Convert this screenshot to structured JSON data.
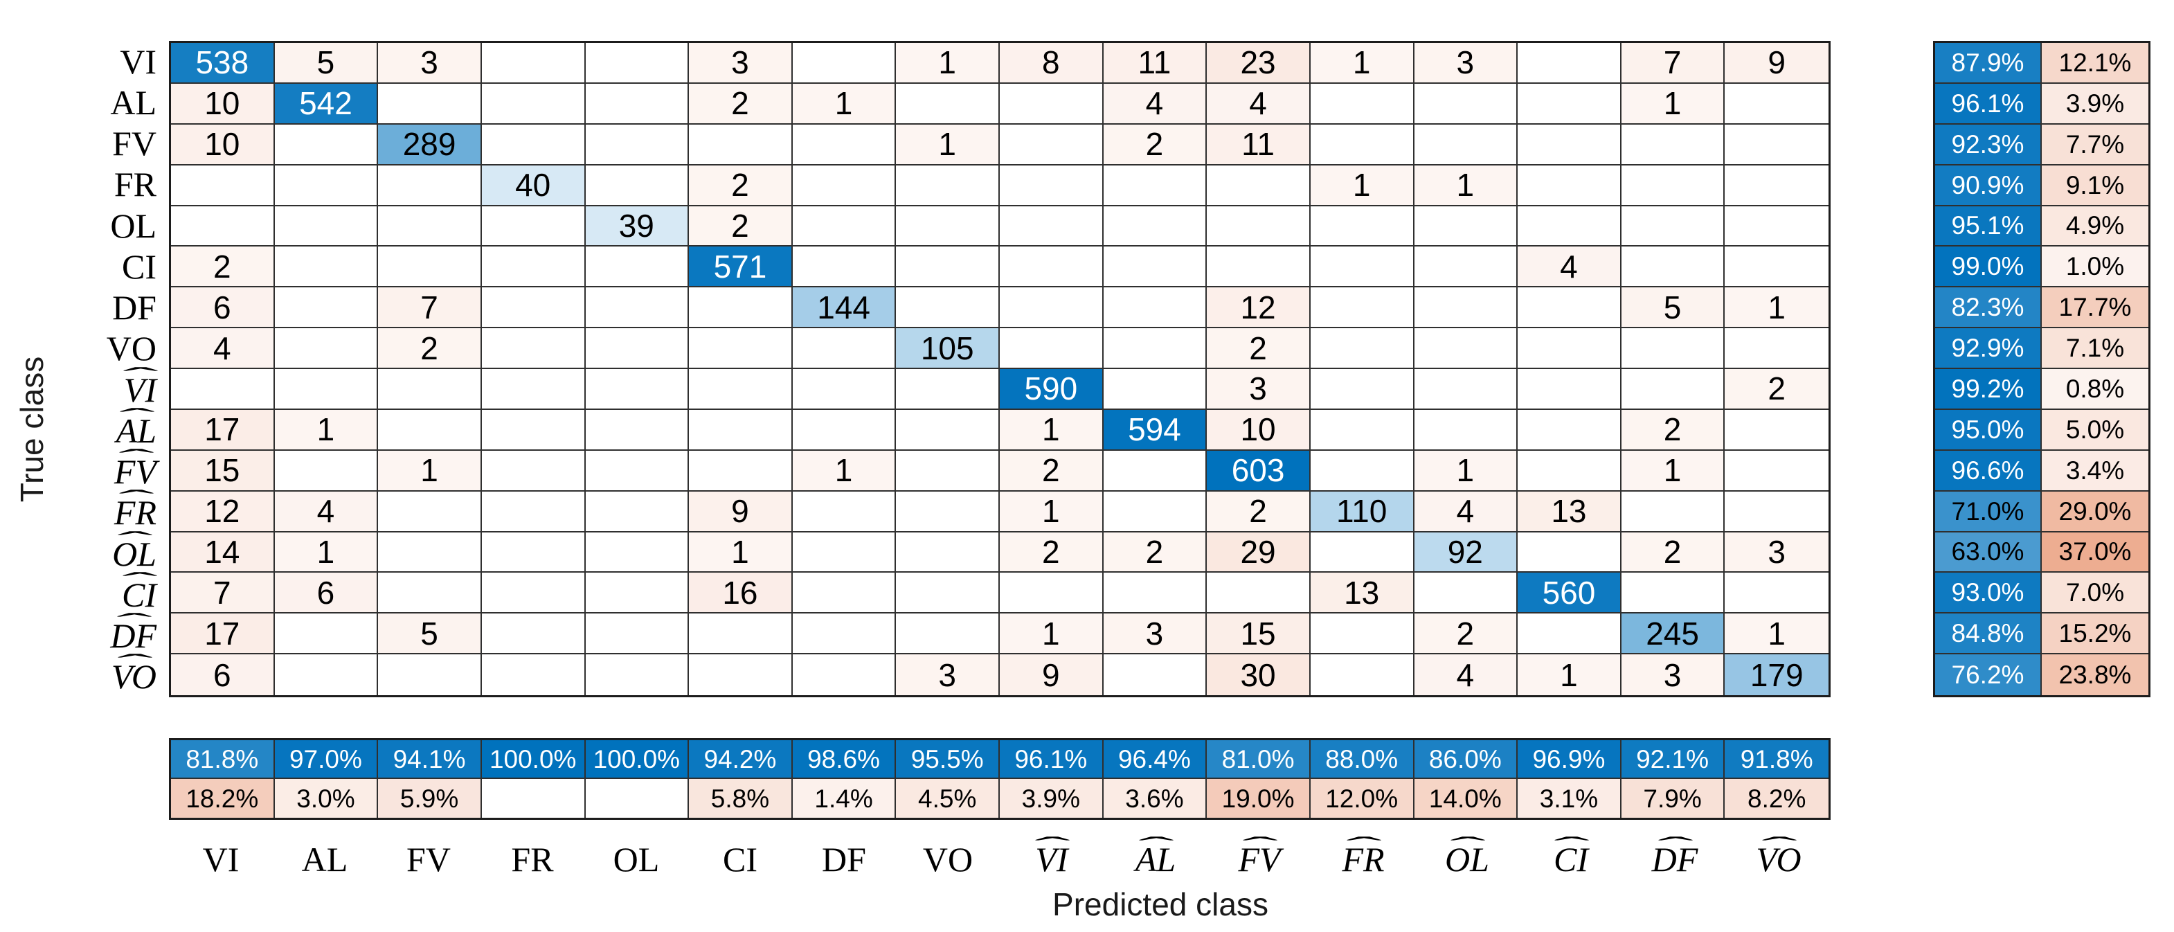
{
  "chart_data": {
    "type": "heatmap",
    "subtype": "confusion-matrix",
    "title": "",
    "xlabel": "Predicted class",
    "ylabel": "True class",
    "legend_position": "none",
    "grid": true,
    "classes": [
      {
        "label": "VI",
        "hat": false
      },
      {
        "label": "AL",
        "hat": false
      },
      {
        "label": "FV",
        "hat": false
      },
      {
        "label": "FR",
        "hat": false
      },
      {
        "label": "OL",
        "hat": false
      },
      {
        "label": "CI",
        "hat": false
      },
      {
        "label": "DF",
        "hat": false
      },
      {
        "label": "VO",
        "hat": false
      },
      {
        "label": "VI",
        "hat": true
      },
      {
        "label": "AL",
        "hat": true
      },
      {
        "label": "FV",
        "hat": true
      },
      {
        "label": "FR",
        "hat": true
      },
      {
        "label": "OL",
        "hat": true
      },
      {
        "label": "CI",
        "hat": true
      },
      {
        "label": "DF",
        "hat": true
      },
      {
        "label": "VO",
        "hat": true
      }
    ],
    "matrix": [
      [
        538,
        5,
        3,
        0,
        0,
        3,
        0,
        1,
        8,
        11,
        23,
        1,
        3,
        0,
        7,
        9
      ],
      [
        10,
        542,
        0,
        0,
        0,
        2,
        1,
        0,
        0,
        4,
        4,
        0,
        0,
        0,
        1,
        0
      ],
      [
        10,
        0,
        289,
        0,
        0,
        0,
        0,
        1,
        0,
        2,
        11,
        0,
        0,
        0,
        0,
        0
      ],
      [
        0,
        0,
        0,
        40,
        0,
        2,
        0,
        0,
        0,
        0,
        0,
        1,
        1,
        0,
        0,
        0
      ],
      [
        0,
        0,
        0,
        0,
        39,
        2,
        0,
        0,
        0,
        0,
        0,
        0,
        0,
        0,
        0,
        0
      ],
      [
        2,
        0,
        0,
        0,
        0,
        571,
        0,
        0,
        0,
        0,
        0,
        0,
        0,
        4,
        0,
        0
      ],
      [
        6,
        0,
        7,
        0,
        0,
        0,
        144,
        0,
        0,
        0,
        12,
        0,
        0,
        0,
        5,
        1
      ],
      [
        4,
        0,
        2,
        0,
        0,
        0,
        0,
        105,
        0,
        0,
        2,
        0,
        0,
        0,
        0,
        0
      ],
      [
        0,
        0,
        0,
        0,
        0,
        0,
        0,
        0,
        590,
        0,
        3,
        0,
        0,
        0,
        0,
        2
      ],
      [
        17,
        1,
        0,
        0,
        0,
        0,
        0,
        0,
        1,
        594,
        10,
        0,
        0,
        0,
        2,
        0
      ],
      [
        15,
        0,
        1,
        0,
        0,
        0,
        1,
        0,
        2,
        0,
        603,
        0,
        1,
        0,
        1,
        0
      ],
      [
        12,
        4,
        0,
        0,
        0,
        9,
        0,
        0,
        1,
        0,
        2,
        110,
        4,
        13,
        0,
        0
      ],
      [
        14,
        1,
        0,
        0,
        0,
        1,
        0,
        0,
        2,
        2,
        29,
        0,
        92,
        0,
        2,
        3
      ],
      [
        7,
        6,
        0,
        0,
        0,
        16,
        0,
        0,
        0,
        0,
        0,
        13,
        0,
        560,
        0,
        0
      ],
      [
        17,
        0,
        5,
        0,
        0,
        0,
        0,
        0,
        1,
        3,
        15,
        0,
        2,
        0,
        245,
        1
      ],
      [
        6,
        0,
        0,
        0,
        0,
        0,
        0,
        3,
        9,
        0,
        30,
        0,
        4,
        1,
        3,
        179
      ]
    ],
    "row_summary": [
      [
        87.9,
        12.1
      ],
      [
        96.1,
        3.9
      ],
      [
        92.3,
        7.7
      ],
      [
        90.9,
        9.1
      ],
      [
        95.1,
        4.9
      ],
      [
        99.0,
        1.0
      ],
      [
        82.3,
        17.7
      ],
      [
        92.9,
        7.1
      ],
      [
        99.2,
        0.8
      ],
      [
        95.0,
        5.0
      ],
      [
        96.6,
        3.4
      ],
      [
        71.0,
        29.0
      ],
      [
        63.0,
        37.0
      ],
      [
        93.0,
        7.0
      ],
      [
        84.8,
        15.2
      ],
      [
        76.2,
        23.8
      ]
    ],
    "col_summary": [
      [
        81.8,
        18.2
      ],
      [
        97.0,
        3.0
      ],
      [
        94.1,
        5.9
      ],
      [
        100.0,
        null
      ],
      [
        100.0,
        null
      ],
      [
        94.2,
        5.8
      ],
      [
        98.6,
        1.4
      ],
      [
        95.5,
        4.5
      ],
      [
        96.1,
        3.9
      ],
      [
        96.4,
        3.6
      ],
      [
        81.0,
        19.0
      ],
      [
        88.0,
        12.0
      ],
      [
        86.0,
        14.0
      ],
      [
        96.9,
        3.1
      ],
      [
        92.1,
        7.9
      ],
      [
        91.8,
        8.2
      ]
    ],
    "max_count": 603,
    "colors": {
      "diagonal_base": "#0072BD",
      "off_diagonal_base": "#D95319",
      "zero_cell": "#FFFFFF",
      "grid_line": "#2F2F2F",
      "text_dark": "#000000",
      "text_light": "#FFFFFF"
    }
  }
}
